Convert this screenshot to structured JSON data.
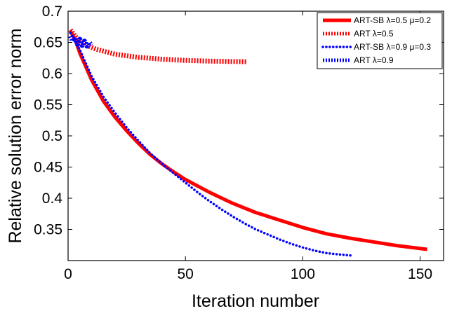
{
  "chart_data": {
    "type": "line",
    "title": "",
    "xlabel": "Iteration number",
    "ylabel": "Relative solution error norm",
    "xlim": [
      0,
      160
    ],
    "ylim": [
      0.3,
      0.7
    ],
    "xticks": [
      "0",
      "50",
      "100",
      "150"
    ],
    "yticks": [
      "0.35",
      "0.4",
      "0.45",
      "0.5",
      "0.55",
      "0.6",
      "0.65",
      "0.7"
    ],
    "grid": false,
    "legend_position": "top-right",
    "series": [
      {
        "name": "ART-SB λ=0.5 μ=0.2",
        "color": "#ff0000",
        "style": "solid",
        "points": [
          [
            1,
            0.668
          ],
          [
            3,
            0.655
          ],
          [
            5,
            0.633
          ],
          [
            10,
            0.59
          ],
          [
            15,
            0.556
          ],
          [
            20,
            0.53
          ],
          [
            25,
            0.508
          ],
          [
            30,
            0.488
          ],
          [
            35,
            0.47
          ],
          [
            40,
            0.455
          ],
          [
            45,
            0.442
          ],
          [
            50,
            0.43
          ],
          [
            60,
            0.41
          ],
          [
            70,
            0.392
          ],
          [
            80,
            0.377
          ],
          [
            90,
            0.365
          ],
          [
            100,
            0.353
          ],
          [
            110,
            0.343
          ],
          [
            120,
            0.336
          ],
          [
            130,
            0.33
          ],
          [
            140,
            0.324
          ],
          [
            153,
            0.318
          ]
        ]
      },
      {
        "name": "ART λ=0.5",
        "color": "#ff0000",
        "style": "dashed",
        "points": [
          [
            1,
            0.67
          ],
          [
            3,
            0.66
          ],
          [
            5,
            0.652
          ],
          [
            8,
            0.645
          ],
          [
            12,
            0.639
          ],
          [
            20,
            0.631
          ],
          [
            30,
            0.626
          ],
          [
            40,
            0.623
          ],
          [
            50,
            0.621
          ],
          [
            60,
            0.62
          ],
          [
            76,
            0.619
          ]
        ]
      },
      {
        "name": "ART-SB λ=0.9 μ=0.3",
        "color": "#0000ff",
        "style": "dotted",
        "points": [
          [
            1,
            0.665
          ],
          [
            3,
            0.652
          ],
          [
            5,
            0.638
          ],
          [
            10,
            0.596
          ],
          [
            15,
            0.563
          ],
          [
            20,
            0.537
          ],
          [
            25,
            0.513
          ],
          [
            30,
            0.492
          ],
          [
            35,
            0.472
          ],
          [
            40,
            0.455
          ],
          [
            45,
            0.44
          ],
          [
            50,
            0.425
          ],
          [
            55,
            0.41
          ],
          [
            60,
            0.396
          ],
          [
            65,
            0.383
          ],
          [
            70,
            0.371
          ],
          [
            75,
            0.36
          ],
          [
            80,
            0.35
          ],
          [
            85,
            0.342
          ],
          [
            90,
            0.334
          ],
          [
            95,
            0.327
          ],
          [
            100,
            0.321
          ],
          [
            105,
            0.316
          ],
          [
            110,
            0.312
          ],
          [
            115,
            0.31
          ],
          [
            121,
            0.308
          ]
        ]
      },
      {
        "name": "ART λ=0.9",
        "color": "#0000ff",
        "style": "dashed",
        "points": [
          [
            1,
            0.66
          ],
          [
            2,
            0.652
          ],
          [
            3,
            0.658
          ],
          [
            4,
            0.647
          ],
          [
            5,
            0.655
          ],
          [
            6,
            0.645
          ],
          [
            7,
            0.652
          ],
          [
            8,
            0.644
          ],
          [
            9,
            0.65
          ],
          [
            10,
            0.645
          ]
        ]
      }
    ]
  }
}
